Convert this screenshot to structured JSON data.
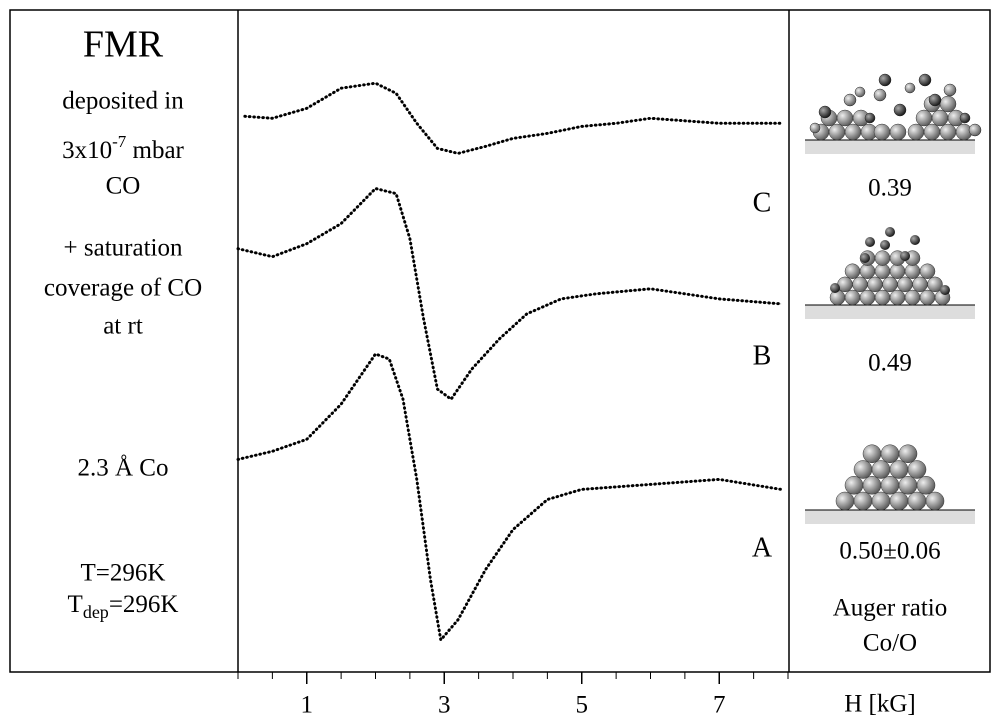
{
  "chart_data": {
    "type": "line",
    "xlabel": "H [kG]",
    "xlim": [
      0,
      8
    ],
    "xticks": [
      1,
      3,
      5,
      7
    ],
    "ylim": [
      0,
      66
    ],
    "series": [
      {
        "name": "C",
        "color": "#000000",
        "x": [
          0.1,
          0.5,
          1.0,
          1.5,
          2.0,
          2.3,
          2.6,
          2.9,
          3.2,
          3.6,
          4.0,
          4.5,
          5.0,
          5.5,
          6.0,
          7.0,
          7.9
        ],
        "values": [
          55.4,
          55.2,
          56.2,
          58.2,
          58.7,
          57.7,
          54.7,
          52.2,
          51.7,
          52.4,
          53.2,
          53.7,
          54.4,
          54.7,
          55.2,
          54.7,
          54.7
        ]
      },
      {
        "name": "B",
        "color": "#000000",
        "x": [
          0.0,
          0.5,
          1.0,
          1.5,
          2.0,
          2.3,
          2.5,
          2.7,
          2.9,
          3.1,
          3.4,
          3.8,
          4.2,
          4.7,
          5.2,
          6.0,
          7.0,
          7.9
        ],
        "values": [
          42.2,
          41.4,
          42.7,
          44.7,
          48.2,
          47.7,
          43.2,
          35.2,
          28.2,
          27.2,
          30.2,
          33.2,
          35.7,
          37.2,
          37.7,
          38.2,
          37.2,
          36.7
        ]
      },
      {
        "name": "A",
        "color": "#000000",
        "x": [
          0.0,
          0.5,
          1.0,
          1.5,
          2.0,
          2.2,
          2.4,
          2.6,
          2.8,
          2.95,
          3.2,
          3.6,
          4.0,
          4.5,
          5.0,
          6.0,
          7.0,
          7.9
        ],
        "values": [
          21.2,
          22.0,
          23.2,
          26.7,
          31.7,
          31.2,
          27.2,
          19.2,
          9.2,
          3.2,
          5.2,
          10.2,
          14.2,
          17.2,
          18.2,
          18.7,
          19.2,
          18.2
        ]
      }
    ],
    "notes": {
      "title": "FMR",
      "deposited": "deposited in",
      "pressure_base": "3x10",
      "pressure_exp": "-7",
      "pressure_unit": " mbar",
      "gas": "CO",
      "saturation": "+ saturation",
      "coverage": "coverage of CO",
      "temp_rt": "at rt",
      "thickness": "2.3 Å Co",
      "temperature": "T=296K",
      "tdep_base": "T",
      "tdep_sub": "dep",
      "tdep_rest": "=296K"
    },
    "auger_ratios": [
      "0.39",
      "0.49",
      "0.50±0.06"
    ],
    "auger_label": "Auger ratio",
    "auger_unit": "Co/O"
  }
}
